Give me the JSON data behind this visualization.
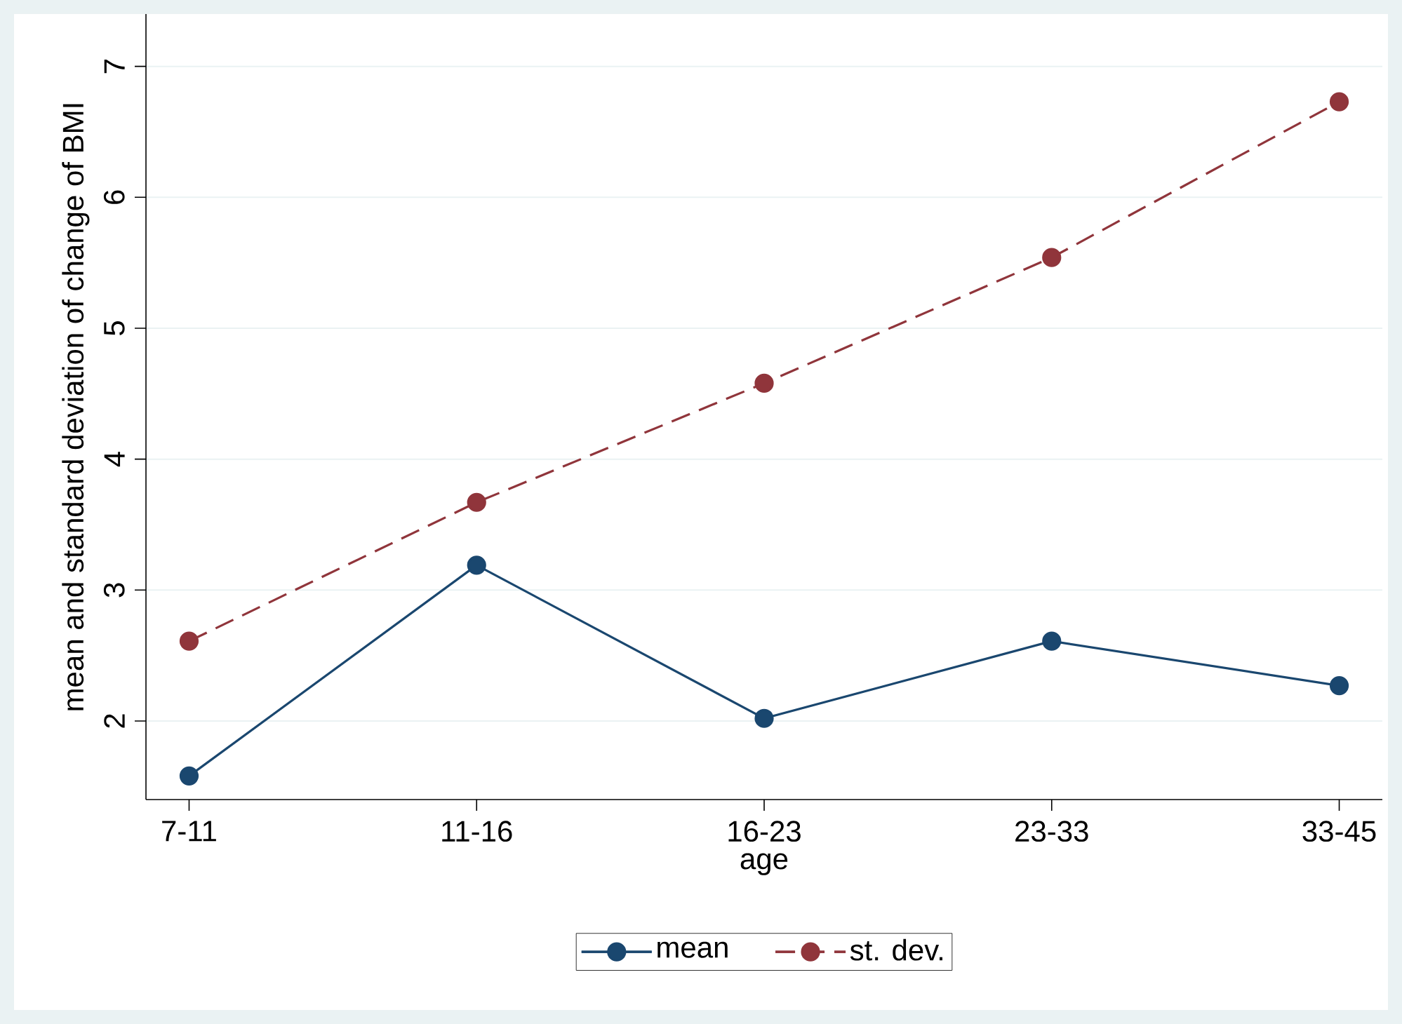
{
  "chart_data": {
    "type": "line",
    "xlabel": "age",
    "ylabel": "mean and standard deviation of change of BMI",
    "categories": [
      "7-11",
      "11-16",
      "16-23",
      "23-33",
      "33-45"
    ],
    "ylim": [
      1.4,
      7.4
    ],
    "yticks": [
      2,
      3,
      4,
      5,
      6,
      7
    ],
    "grid": "y",
    "legend": "bottom",
    "marker": "circle",
    "series": [
      {
        "name": "mean",
        "color": "#1a476f",
        "line_style": "solid",
        "values": [
          1.58,
          3.19,
          2.02,
          2.61,
          2.27
        ]
      },
      {
        "name": "st. dev.",
        "color": "#90353b",
        "line_style": "dashed",
        "values": [
          2.61,
          3.67,
          4.58,
          5.54,
          6.73
        ]
      }
    ]
  }
}
